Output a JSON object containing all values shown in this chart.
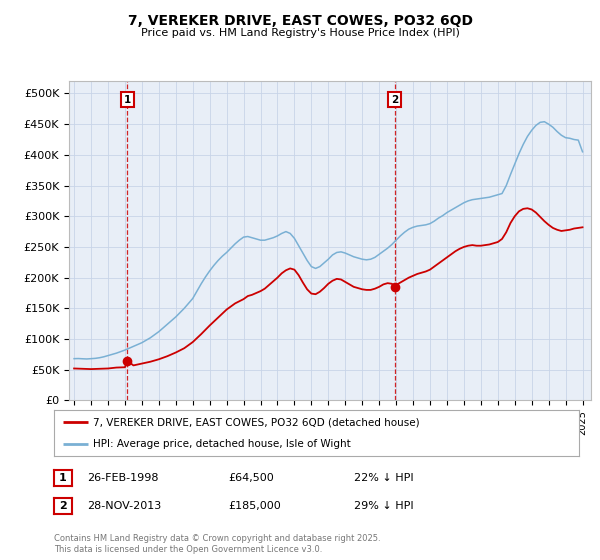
{
  "title": "7, VEREKER DRIVE, EAST COWES, PO32 6QD",
  "subtitle": "Price paid vs. HM Land Registry's House Price Index (HPI)",
  "background_color": "#ffffff",
  "plot_bg_color": "#e8eef7",
  "grid_color": "#c8d4e8",
  "ylabel_ticks": [
    "£0",
    "£50K",
    "£100K",
    "£150K",
    "£200K",
    "£250K",
    "£300K",
    "£350K",
    "£400K",
    "£450K",
    "£500K"
  ],
  "ytick_values": [
    0,
    50000,
    100000,
    150000,
    200000,
    250000,
    300000,
    350000,
    400000,
    450000,
    500000
  ],
  "ylim": [
    0,
    520000
  ],
  "xlim_start": 1994.7,
  "xlim_end": 2025.5,
  "sale1_date": 1998.15,
  "sale1_price": 64500,
  "sale1_label": "1",
  "sale1_text": "26-FEB-1998",
  "sale1_price_text": "£64,500",
  "sale1_pct_text": "22% ↓ HPI",
  "sale2_date": 2013.91,
  "sale2_price": 185000,
  "sale2_label": "2",
  "sale2_text": "28-NOV-2013",
  "sale2_price_text": "£185,000",
  "sale2_pct_text": "29% ↓ HPI",
  "legend_property": "7, VEREKER DRIVE, EAST COWES, PO32 6QD (detached house)",
  "legend_hpi": "HPI: Average price, detached house, Isle of Wight",
  "footer": "Contains HM Land Registry data © Crown copyright and database right 2025.\nThis data is licensed under the Open Government Licence v3.0.",
  "red_color": "#cc0000",
  "blue_color": "#7ab0d4",
  "hpi_data": [
    [
      1995.0,
      68000
    ],
    [
      1995.25,
      68200
    ],
    [
      1995.5,
      67800
    ],
    [
      1995.75,
      67500
    ],
    [
      1996.0,
      68000
    ],
    [
      1996.25,
      68500
    ],
    [
      1996.5,
      69500
    ],
    [
      1996.75,
      71000
    ],
    [
      1997.0,
      73000
    ],
    [
      1997.25,
      75000
    ],
    [
      1997.5,
      77000
    ],
    [
      1997.75,
      79500
    ],
    [
      1998.0,
      82000
    ],
    [
      1998.25,
      85000
    ],
    [
      1998.5,
      88000
    ],
    [
      1998.75,
      91000
    ],
    [
      1999.0,
      94000
    ],
    [
      1999.25,
      98000
    ],
    [
      1999.5,
      102000
    ],
    [
      1999.75,
      107000
    ],
    [
      2000.0,
      112000
    ],
    [
      2000.25,
      118000
    ],
    [
      2000.5,
      124000
    ],
    [
      2000.75,
      130000
    ],
    [
      2001.0,
      136000
    ],
    [
      2001.25,
      143000
    ],
    [
      2001.5,
      150000
    ],
    [
      2001.75,
      158000
    ],
    [
      2002.0,
      166000
    ],
    [
      2002.25,
      178000
    ],
    [
      2002.5,
      190000
    ],
    [
      2002.75,
      201000
    ],
    [
      2003.0,
      211000
    ],
    [
      2003.25,
      220000
    ],
    [
      2003.5,
      228000
    ],
    [
      2003.75,
      235000
    ],
    [
      2004.0,
      241000
    ],
    [
      2004.25,
      248000
    ],
    [
      2004.5,
      255000
    ],
    [
      2004.75,
      261000
    ],
    [
      2005.0,
      266000
    ],
    [
      2005.25,
      267000
    ],
    [
      2005.5,
      265000
    ],
    [
      2005.75,
      263000
    ],
    [
      2006.0,
      261000
    ],
    [
      2006.25,
      261000
    ],
    [
      2006.5,
      263000
    ],
    [
      2006.75,
      265000
    ],
    [
      2007.0,
      268000
    ],
    [
      2007.25,
      272000
    ],
    [
      2007.5,
      275000
    ],
    [
      2007.75,
      272000
    ],
    [
      2008.0,
      264000
    ],
    [
      2008.25,
      252000
    ],
    [
      2008.5,
      240000
    ],
    [
      2008.75,
      228000
    ],
    [
      2009.0,
      218000
    ],
    [
      2009.25,
      215000
    ],
    [
      2009.5,
      218000
    ],
    [
      2009.75,
      224000
    ],
    [
      2010.0,
      230000
    ],
    [
      2010.25,
      237000
    ],
    [
      2010.5,
      241000
    ],
    [
      2010.75,
      242000
    ],
    [
      2011.0,
      240000
    ],
    [
      2011.25,
      237000
    ],
    [
      2011.5,
      234000
    ],
    [
      2011.75,
      232000
    ],
    [
      2012.0,
      230000
    ],
    [
      2012.25,
      229000
    ],
    [
      2012.5,
      230000
    ],
    [
      2012.75,
      233000
    ],
    [
      2013.0,
      238000
    ],
    [
      2013.25,
      243000
    ],
    [
      2013.5,
      248000
    ],
    [
      2013.75,
      254000
    ],
    [
      2014.0,
      261000
    ],
    [
      2014.25,
      268000
    ],
    [
      2014.5,
      274000
    ],
    [
      2014.75,
      279000
    ],
    [
      2015.0,
      282000
    ],
    [
      2015.25,
      284000
    ],
    [
      2015.5,
      285000
    ],
    [
      2015.75,
      286000
    ],
    [
      2016.0,
      288000
    ],
    [
      2016.25,
      292000
    ],
    [
      2016.5,
      297000
    ],
    [
      2016.75,
      301000
    ],
    [
      2017.0,
      306000
    ],
    [
      2017.25,
      310000
    ],
    [
      2017.5,
      314000
    ],
    [
      2017.75,
      318000
    ],
    [
      2018.0,
      322000
    ],
    [
      2018.25,
      325000
    ],
    [
      2018.5,
      327000
    ],
    [
      2018.75,
      328000
    ],
    [
      2019.0,
      329000
    ],
    [
      2019.25,
      330000
    ],
    [
      2019.5,
      331000
    ],
    [
      2019.75,
      333000
    ],
    [
      2020.0,
      335000
    ],
    [
      2020.25,
      337000
    ],
    [
      2020.5,
      350000
    ],
    [
      2020.75,
      368000
    ],
    [
      2021.0,
      385000
    ],
    [
      2021.25,
      402000
    ],
    [
      2021.5,
      417000
    ],
    [
      2021.75,
      430000
    ],
    [
      2022.0,
      440000
    ],
    [
      2022.25,
      448000
    ],
    [
      2022.5,
      453000
    ],
    [
      2022.75,
      454000
    ],
    [
      2023.0,
      450000
    ],
    [
      2023.25,
      445000
    ],
    [
      2023.5,
      438000
    ],
    [
      2023.75,
      432000
    ],
    [
      2024.0,
      428000
    ],
    [
      2024.25,
      427000
    ],
    [
      2024.5,
      425000
    ],
    [
      2024.75,
      424000
    ],
    [
      2025.0,
      405000
    ]
  ],
  "price_data": [
    [
      1995.0,
      52000
    ],
    [
      1995.5,
      51500
    ],
    [
      1996.0,
      51000
    ],
    [
      1996.5,
      51500
    ],
    [
      1997.0,
      52000
    ],
    [
      1997.5,
      53500
    ],
    [
      1998.0,
      54000
    ],
    [
      1998.15,
      64500
    ],
    [
      1998.5,
      57000
    ],
    [
      1999.0,
      60000
    ],
    [
      1999.5,
      63000
    ],
    [
      2000.0,
      67000
    ],
    [
      2000.5,
      72000
    ],
    [
      2001.0,
      78000
    ],
    [
      2001.5,
      85000
    ],
    [
      2002.0,
      95000
    ],
    [
      2002.5,
      108000
    ],
    [
      2003.0,
      122000
    ],
    [
      2003.5,
      135000
    ],
    [
      2004.0,
      148000
    ],
    [
      2004.5,
      158000
    ],
    [
      2005.0,
      165000
    ],
    [
      2005.25,
      170000
    ],
    [
      2005.5,
      172000
    ],
    [
      2005.75,
      175000
    ],
    [
      2006.0,
      178000
    ],
    [
      2006.25,
      182000
    ],
    [
      2006.5,
      188000
    ],
    [
      2006.75,
      194000
    ],
    [
      2007.0,
      200000
    ],
    [
      2007.25,
      207000
    ],
    [
      2007.5,
      212000
    ],
    [
      2007.75,
      215000
    ],
    [
      2008.0,
      213000
    ],
    [
      2008.25,
      204000
    ],
    [
      2008.5,
      192000
    ],
    [
      2008.75,
      181000
    ],
    [
      2009.0,
      174000
    ],
    [
      2009.25,
      173000
    ],
    [
      2009.5,
      177000
    ],
    [
      2009.75,
      183000
    ],
    [
      2010.0,
      190000
    ],
    [
      2010.25,
      195000
    ],
    [
      2010.5,
      198000
    ],
    [
      2010.75,
      197000
    ],
    [
      2011.0,
      193000
    ],
    [
      2011.25,
      189000
    ],
    [
      2011.5,
      185000
    ],
    [
      2011.75,
      183000
    ],
    [
      2012.0,
      181000
    ],
    [
      2012.25,
      180000
    ],
    [
      2012.5,
      180000
    ],
    [
      2012.75,
      182000
    ],
    [
      2013.0,
      185000
    ],
    [
      2013.25,
      189000
    ],
    [
      2013.5,
      191000
    ],
    [
      2013.75,
      190000
    ],
    [
      2013.91,
      185000
    ],
    [
      2014.0,
      188000
    ],
    [
      2014.25,
      192000
    ],
    [
      2014.5,
      196000
    ],
    [
      2014.75,
      200000
    ],
    [
      2015.0,
      203000
    ],
    [
      2015.25,
      206000
    ],
    [
      2015.5,
      208000
    ],
    [
      2015.75,
      210000
    ],
    [
      2016.0,
      213000
    ],
    [
      2016.25,
      218000
    ],
    [
      2016.5,
      223000
    ],
    [
      2016.75,
      228000
    ],
    [
      2017.0,
      233000
    ],
    [
      2017.25,
      238000
    ],
    [
      2017.5,
      243000
    ],
    [
      2017.75,
      247000
    ],
    [
      2018.0,
      250000
    ],
    [
      2018.25,
      252000
    ],
    [
      2018.5,
      253000
    ],
    [
      2018.75,
      252000
    ],
    [
      2019.0,
      252000
    ],
    [
      2019.25,
      253000
    ],
    [
      2019.5,
      254000
    ],
    [
      2019.75,
      256000
    ],
    [
      2020.0,
      258000
    ],
    [
      2020.25,
      263000
    ],
    [
      2020.5,
      274000
    ],
    [
      2020.75,
      289000
    ],
    [
      2021.0,
      300000
    ],
    [
      2021.25,
      308000
    ],
    [
      2021.5,
      312000
    ],
    [
      2021.75,
      313000
    ],
    [
      2022.0,
      311000
    ],
    [
      2022.25,
      306000
    ],
    [
      2022.5,
      299000
    ],
    [
      2022.75,
      292000
    ],
    [
      2023.0,
      286000
    ],
    [
      2023.25,
      281000
    ],
    [
      2023.5,
      278000
    ],
    [
      2023.75,
      276000
    ],
    [
      2024.0,
      277000
    ],
    [
      2024.25,
      278000
    ],
    [
      2024.5,
      280000
    ],
    [
      2024.75,
      281000
    ],
    [
      2025.0,
      282000
    ]
  ],
  "xtick_years": [
    1995,
    1996,
    1997,
    1998,
    1999,
    2000,
    2001,
    2002,
    2003,
    2004,
    2005,
    2006,
    2007,
    2008,
    2009,
    2010,
    2011,
    2012,
    2013,
    2014,
    2015,
    2016,
    2017,
    2018,
    2019,
    2020,
    2021,
    2022,
    2023,
    2024,
    2025
  ]
}
